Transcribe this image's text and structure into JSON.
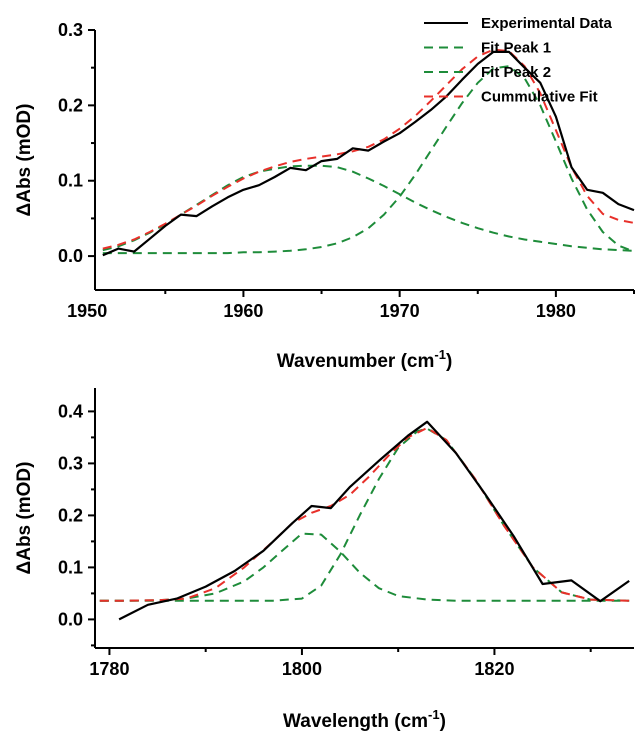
{
  "chart_data": [
    {
      "type": "line",
      "xlabel": "Wavenumber (cm",
      "xlabel_sup": "-1",
      "xlabel_close": ")",
      "ylabel": "ΔAbs (mOD)",
      "xlim": [
        1950.5,
        1985
      ],
      "ylim": [
        -0.045,
        0.3
      ],
      "xticks": [
        1950,
        1960,
        1970,
        1980
      ],
      "yticks": [
        0.0,
        0.1,
        0.2,
        0.3
      ],
      "ytick_labels": [
        "0.0",
        "0.1",
        "0.2",
        "0.3"
      ],
      "grid": false,
      "legend_position": "top-right",
      "legend": [
        {
          "label": "Experimental Data",
          "color": "#000000",
          "style": "solid"
        },
        {
          "label": "Fit Peak 1",
          "color": "#1e8c3a",
          "style": "dashed"
        },
        {
          "label": "Fit Peak 2",
          "color": "#1e8c3a",
          "style": "dashed"
        },
        {
          "label": "Cummulative Fit",
          "color": "#e8302a",
          "style": "dashed"
        }
      ],
      "series": [
        {
          "name": "Experimental Data",
          "color": "#000000",
          "style": "solid",
          "x": [
            1951,
            1952,
            1953,
            1954,
            1955,
            1956,
            1957,
            1958,
            1959,
            1960,
            1961,
            1962,
            1963,
            1964,
            1965,
            1966,
            1967,
            1968,
            1969,
            1970,
            1971,
            1972,
            1973,
            1974,
            1975,
            1976,
            1977,
            1978,
            1979,
            1980,
            1981,
            1982,
            1983,
            1984,
            1985
          ],
          "y": [
            0.001,
            0.01,
            0.006,
            0.023,
            0.04,
            0.055,
            0.053,
            0.066,
            0.078,
            0.088,
            0.094,
            0.105,
            0.117,
            0.114,
            0.126,
            0.129,
            0.143,
            0.14,
            0.152,
            0.163,
            0.178,
            0.194,
            0.212,
            0.234,
            0.255,
            0.271,
            0.271,
            0.25,
            0.23,
            0.185,
            0.118,
            0.088,
            0.084,
            0.069,
            0.061
          ]
        },
        {
          "name": "Fit Peak 1",
          "color": "#1e8c3a",
          "style": "dashed",
          "x": [
            1951,
            1952,
            1953,
            1954,
            1955,
            1956,
            1957,
            1958,
            1959,
            1960,
            1961,
            1962,
            1963,
            1964,
            1965,
            1966,
            1967,
            1968,
            1969,
            1970,
            1971,
            1972,
            1973,
            1974,
            1975,
            1976,
            1977,
            1978,
            1979,
            1980,
            1981,
            1982,
            1983,
            1984,
            1985
          ],
          "y": [
            0.008,
            0.013,
            0.021,
            0.031,
            0.042,
            0.055,
            0.068,
            0.081,
            0.094,
            0.105,
            0.112,
            0.116,
            0.119,
            0.12,
            0.12,
            0.118,
            0.112,
            0.103,
            0.093,
            0.082,
            0.071,
            0.061,
            0.052,
            0.044,
            0.037,
            0.031,
            0.026,
            0.022,
            0.019,
            0.016,
            0.013,
            0.011,
            0.009,
            0.008,
            0.007
          ]
        },
        {
          "name": "Fit Peak 2",
          "color": "#1e8c3a",
          "style": "dashed",
          "x": [
            1951,
            1952,
            1953,
            1954,
            1955,
            1956,
            1957,
            1958,
            1959,
            1960,
            1961,
            1962,
            1963,
            1964,
            1965,
            1966,
            1967,
            1968,
            1969,
            1970,
            1971,
            1972,
            1973,
            1974,
            1975,
            1976,
            1977,
            1978,
            1979,
            1980,
            1981,
            1982,
            1983,
            1984,
            1985
          ],
          "y": [
            0.004,
            0.004,
            0.004,
            0.004,
            0.004,
            0.004,
            0.004,
            0.004,
            0.004,
            0.005,
            0.005,
            0.006,
            0.007,
            0.009,
            0.012,
            0.017,
            0.025,
            0.037,
            0.055,
            0.079,
            0.108,
            0.14,
            0.172,
            0.203,
            0.23,
            0.249,
            0.252,
            0.236,
            0.2,
            0.152,
            0.103,
            0.062,
            0.032,
            0.014,
            0.006
          ]
        },
        {
          "name": "Cummulative Fit",
          "color": "#e8302a",
          "style": "dashed",
          "x": [
            1951,
            1952,
            1953,
            1954,
            1955,
            1956,
            1957,
            1958,
            1959,
            1960,
            1961,
            1962,
            1963,
            1964,
            1965,
            1966,
            1967,
            1968,
            1969,
            1970,
            1971,
            1972,
            1973,
            1974,
            1975,
            1976,
            1977,
            1978,
            1979,
            1980,
            1981,
            1982,
            1983,
            1984,
            1985
          ],
          "y": [
            0.01,
            0.015,
            0.022,
            0.032,
            0.043,
            0.055,
            0.067,
            0.08,
            0.092,
            0.103,
            0.112,
            0.119,
            0.125,
            0.129,
            0.132,
            0.135,
            0.139,
            0.145,
            0.155,
            0.169,
            0.186,
            0.206,
            0.227,
            0.248,
            0.265,
            0.274,
            0.272,
            0.252,
            0.216,
            0.167,
            0.118,
            0.08,
            0.056,
            0.048,
            0.044
          ]
        }
      ]
    },
    {
      "type": "line",
      "xlabel": "Wavelength (cm",
      "xlabel_sup": "-1",
      "xlabel_close": ")",
      "ylabel": "ΔAbs (mOD)",
      "xlim": [
        1778.5,
        1834.5
      ],
      "ylim": [
        -0.055,
        0.445
      ],
      "xticks": [
        1780,
        1800,
        1820
      ],
      "yticks": [
        0.0,
        0.1,
        0.2,
        0.3,
        0.4
      ],
      "ytick_labels": [
        "0.0",
        "0.1",
        "0.2",
        "0.3",
        "0.4"
      ],
      "grid": false,
      "series": [
        {
          "name": "Experimental Data",
          "color": "#000000",
          "style": "solid",
          "x": [
            1781,
            1784,
            1787,
            1790,
            1793,
            1796,
            1799,
            1801,
            1803,
            1805,
            1808,
            1811,
            1813,
            1816,
            1819,
            1822,
            1825,
            1828,
            1831,
            1834
          ],
          "y": [
            0.0,
            0.028,
            0.04,
            0.063,
            0.093,
            0.132,
            0.185,
            0.218,
            0.214,
            0.255,
            0.305,
            0.353,
            0.38,
            0.32,
            0.242,
            0.16,
            0.068,
            0.075,
            0.035,
            0.074
          ]
        },
        {
          "name": "Fit Peak 1",
          "color": "#1e8c3a",
          "style": "dashed",
          "x": [
            1779,
            1782,
            1785,
            1788,
            1791,
            1794,
            1796,
            1798,
            1800,
            1802,
            1804,
            1806,
            1808,
            1810,
            1813,
            1816,
            1820,
            1825,
            1830,
            1834
          ],
          "y": [
            0.036,
            0.036,
            0.037,
            0.04,
            0.05,
            0.073,
            0.1,
            0.133,
            0.165,
            0.163,
            0.13,
            0.09,
            0.06,
            0.045,
            0.038,
            0.036,
            0.036,
            0.036,
            0.036,
            0.036
          ]
        },
        {
          "name": "Fit Peak 2",
          "color": "#1e8c3a",
          "style": "dashed",
          "x": [
            1779,
            1782,
            1785,
            1788,
            1791,
            1794,
            1797,
            1800,
            1802,
            1804,
            1806,
            1808,
            1810,
            1812,
            1813,
            1815,
            1818,
            1821,
            1824,
            1827,
            1830,
            1834
          ],
          "y": [
            0.036,
            0.036,
            0.036,
            0.036,
            0.036,
            0.036,
            0.036,
            0.04,
            0.065,
            0.125,
            0.2,
            0.27,
            0.33,
            0.362,
            0.367,
            0.345,
            0.27,
            0.18,
            0.1,
            0.052,
            0.038,
            0.036
          ]
        },
        {
          "name": "Cummulative Fit",
          "color": "#e8302a",
          "style": "dashed",
          "x": [
            1779,
            1782,
            1785,
            1788,
            1791,
            1794,
            1797,
            1799,
            1801,
            1803,
            1805,
            1807,
            1809,
            1811,
            1813,
            1815,
            1818,
            1821,
            1824,
            1827,
            1830,
            1834
          ],
          "y": [
            0.036,
            0.036,
            0.037,
            0.04,
            0.06,
            0.1,
            0.15,
            0.185,
            0.205,
            0.218,
            0.24,
            0.275,
            0.315,
            0.35,
            0.368,
            0.345,
            0.27,
            0.18,
            0.1,
            0.052,
            0.038,
            0.036
          ]
        }
      ]
    }
  ]
}
